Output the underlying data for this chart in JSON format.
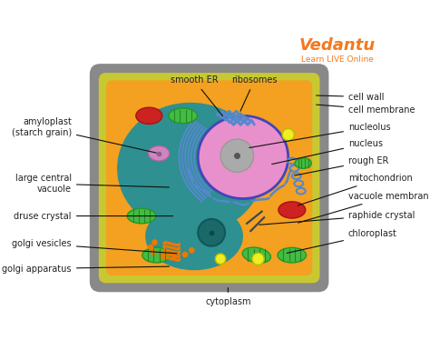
{
  "bg_color": "#ffffff",
  "cell_wall_color": "#898989",
  "cell_membrane_color": "#c8c832",
  "cytoplasm_color": "#f4a020",
  "vacuole_color": "#2e9090",
  "vacuole_lower_color": "#1a7070",
  "nucleus_color": "#e890cc",
  "nucleolus_color": "#aaaaaa",
  "nucleus_border_color": "#4444bb",
  "er_color": "#5588cc",
  "chloroplast_color": "#44bb44",
  "chloroplast_inner_color": "#228822",
  "mitochondria_color": "#cc2222",
  "amyloplast_color": "#cc88bb",
  "golgi_color": "#ee7700",
  "yellow_dot_color": "#eeee22",
  "vedantu_orange": "#f47920",
  "vedantu_subtext": "#f47920",
  "label_color": "#222222",
  "arrow_color": "#111111",
  "labels": {
    "smooth_er": "smooth ER",
    "ribosomes": "ribosomes",
    "cell_wall": "cell wall",
    "cell_membrane": "cell membrane",
    "nucleolus": "nucleolus",
    "nucleus": "nucleus",
    "rough_er": "rough ER",
    "mitochondrion": "mitochondrion",
    "vacuole_membrane": "vacuole membran",
    "raphide_crystal": "raphide crystal",
    "chloroplast": "chloroplast",
    "cytoplasm": "cytoplasm",
    "large_central_vacuole": "large central\nvacuole",
    "druse_crystal": "druse crystal",
    "golgi_vesicles": "golgi vesicles",
    "golgi_apparatus": "golgi apparatus",
    "amyloplast": "amyloplast\n(starch grain)"
  }
}
